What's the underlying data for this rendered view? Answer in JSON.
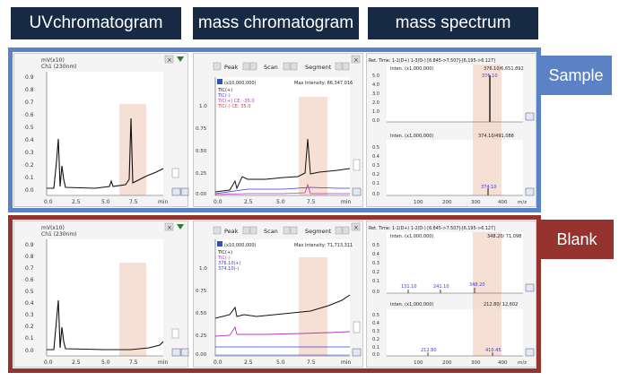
{
  "headers": {
    "uv": "UVchromatogram",
    "mass_chrom": "mass chromatogram",
    "mass_spec": "mass spectrum"
  },
  "labels": {
    "sample": "Sample",
    "blank": "Blank"
  },
  "colors": {
    "header_bg": "#162a44",
    "sample_border": "#5b82c4",
    "blank_border": "#95332e",
    "highlight": "#f3d4c6"
  },
  "sample": {
    "uv": {
      "unit": "mV(x10)",
      "channel": "Ch1 (230nm)",
      "y_ticks": [
        "0.9",
        "0.8",
        "0.7",
        "0.6",
        "0.5",
        "0.4",
        "0.3",
        "0.2",
        "0.1",
        "0.0"
      ],
      "x_ticks": [
        "0.0",
        "2.5",
        "5.0",
        "7.5",
        "min"
      ]
    },
    "mass_chrom": {
      "toolbar": [
        "Peak",
        "Scan",
        "Segment"
      ],
      "scale": "(x10,000,000)",
      "max_intensity": "Max Intensity: 66,347,016",
      "legend": [
        "TIC(+)",
        "TIC(-)",
        "TIC(+) CE: -35.0",
        "TIC(-) CE: 35.0"
      ],
      "y_ticks": [
        "1.0",
        "0.75",
        "0.50",
        "0.25",
        "0.00"
      ],
      "x_ticks": [
        "0.0",
        "2.5",
        "5.0",
        "7.5",
        "min"
      ]
    },
    "mass_spec": {
      "ret_time": "Ret. Time: 1-1(D+)  1-3(D-)  [6.845->7.507]-[6.195->6.127]",
      "top_inten": "Inten. (x1,000,000)",
      "top_peak": "376.10/6,651,892",
      "top_peak_label": "376.10",
      "top_y": [
        "5.0",
        "4.0",
        "3.0",
        "2.0",
        "1.0",
        "0.0"
      ],
      "bottom_inten": "Inten. (x1,000,000)",
      "bottom_peak": "374.10/491,088",
      "bottom_peak_label": "374.10",
      "bottom_y": [
        "0.5",
        "0.4",
        "0.3",
        "0.2",
        "0.1",
        "0.0"
      ],
      "x_ticks": [
        "100",
        "200",
        "300",
        "400",
        "m/z"
      ]
    }
  },
  "blank": {
    "uv": {
      "unit": "mV(x10)",
      "channel": "Ch1 (230nm)",
      "y_ticks": [
        "0.9",
        "0.8",
        "0.7",
        "0.6",
        "0.5",
        "0.4",
        "0.3",
        "0.2",
        "0.1",
        "0.0"
      ],
      "x_ticks": [
        "0.0",
        "2.5",
        "5.0",
        "7.5",
        "min"
      ]
    },
    "mass_chrom": {
      "toolbar": [
        "Peak",
        "Scan",
        "Segment"
      ],
      "scale": "(x10,000,000)",
      "max_intensity": "Max Intensity: 71,713,311",
      "legend": [
        "TIC(+)",
        "TIC(-)",
        "376.10(+)",
        "374.10(-)"
      ],
      "y_ticks": [
        "1.0",
        "0.75",
        "0.50",
        "0.25",
        "0.00"
      ],
      "x_ticks": [
        "0.0",
        "2.5",
        "5.0",
        "7.5",
        "min"
      ]
    },
    "mass_spec": {
      "ret_time": "Ret. Time: 1-1(D+)  1-2(D-)  [6.845->7.507]-[6.195->6.127]",
      "top_inten": "Inten. (x1,000,000)",
      "top_peak": "348.20/ 71,098",
      "top_labels": [
        "131.10",
        "241.10",
        "348.20"
      ],
      "top_y": [
        "0.5",
        "0.4",
        "0.3",
        "0.2",
        "0.1",
        "0.0"
      ],
      "bottom_inten": "Inten. (x1,000,000)",
      "bottom_peak": "212.80/ 12,602",
      "bottom_labels": [
        "212.80",
        "410.45"
      ],
      "bottom_y": [
        "0.5",
        "0.4",
        "0.3",
        "0.2",
        "0.1",
        "0.0"
      ],
      "x_ticks": [
        "100",
        "200",
        "300",
        "400",
        "m/z"
      ]
    }
  }
}
